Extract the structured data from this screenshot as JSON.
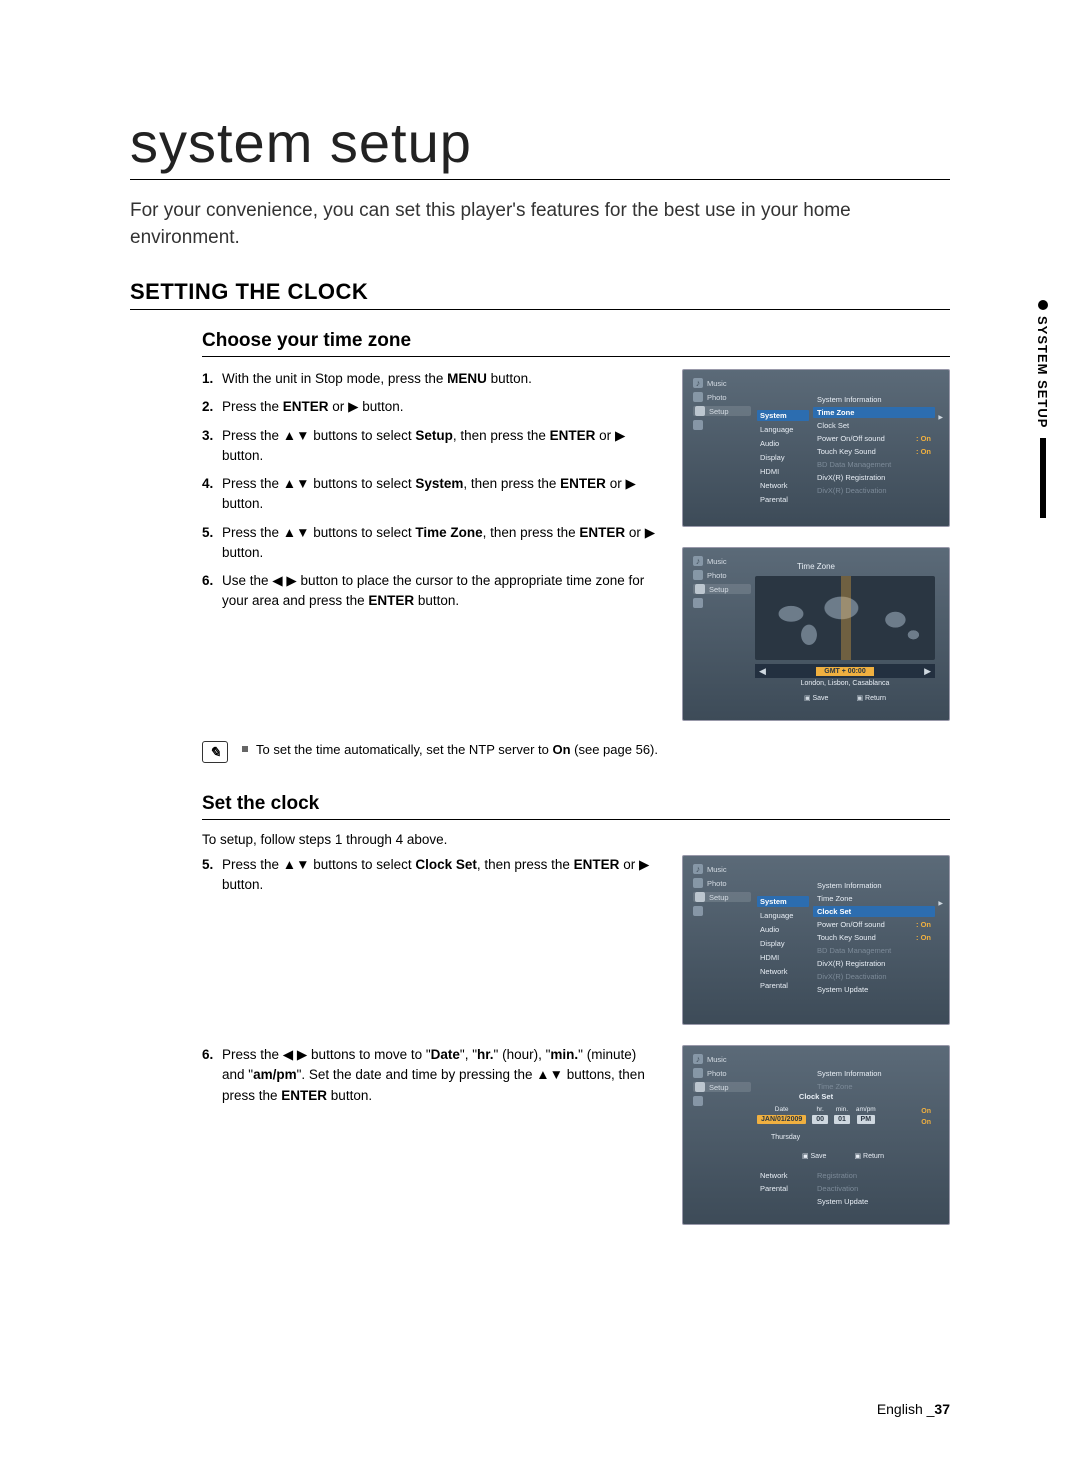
{
  "page": {
    "title": "system setup",
    "intro": "For your convenience, you can set this player's features for the best use in your home environment.",
    "section_heading": "SETTING THE CLOCK",
    "foot_lang": "English",
    "foot_page": "37"
  },
  "side_tab": "SYSTEM SETUP",
  "tz": {
    "heading": "Choose your time zone",
    "steps": [
      {
        "n": "1.",
        "html": "With the unit in Stop mode, press the <b>MENU</b> button."
      },
      {
        "n": "2.",
        "html": "Press the <b>ENTER</b> or <span class='tri'>▶</span> button."
      },
      {
        "n": "3.",
        "html": "Press the <span class='tri'>▲▼</span> buttons to select <b>Setup</b>, then press the <b>ENTER</b> or <span class='tri'>▶</span> button."
      },
      {
        "n": "4.",
        "html": "Press the <span class='tri'>▲▼</span> buttons to select <b>System</b>, then press the <b>ENTER</b> or <span class='tri'>▶</span> button."
      },
      {
        "n": "5.",
        "html": "Press the <span class='tri'>▲▼</span> buttons to select <b>Time Zone</b>, then press the <b>ENTER</b> or <span class='tri'>▶</span> button."
      },
      {
        "n": "6.",
        "html": "Use the <span class='tri'>◀ ▶</span> button to place the cursor to the appropriate time zone for your area and press the <b>ENTER</b> button."
      }
    ],
    "note": "To set the time automatically, set the NTP server to <b>On</b> (see page 56)."
  },
  "sc": {
    "heading": "Set the clock",
    "lead": "To setup, follow steps 1 through 4 above.",
    "steps": [
      {
        "n": "5.",
        "html": "Press the <span class='tri'>▲▼</span> buttons to select <b>Clock Set</b>, then press the <b>ENTER</b> or <span class='tri'>▶</span> button."
      },
      {
        "n": "6.",
        "html": "Press the <span class='tri'>◀ ▶</span> buttons to move to \"<b>Date</b>\", \"<b>hr.</b>\" (hour), \"<b>min.</b>\" (minute) and \"<b>am/pm</b>\". Set the date and time by pressing the <span class='tri'>▲▼</span> buttons, then press the <b>ENTER</b> button."
      }
    ]
  },
  "shots": {
    "nav": [
      "Music",
      "Photo",
      "Setup",
      ""
    ],
    "mid": [
      "System",
      "Language",
      "Audio",
      "Display",
      "HDMI",
      "Network",
      "Parental"
    ],
    "s1_right": [
      {
        "l": "System Information",
        "v": "",
        "sel": false,
        "dim": false
      },
      {
        "l": "Time Zone",
        "v": "",
        "sel": true,
        "dim": false
      },
      {
        "l": "Clock Set",
        "v": "",
        "sel": false,
        "dim": false
      },
      {
        "l": "Power On/Off sound",
        "v": "On",
        "sel": false,
        "dim": false
      },
      {
        "l": "Touch Key Sound",
        "v": "On",
        "sel": false,
        "dim": false
      },
      {
        "l": "BD Data Management",
        "v": "",
        "sel": false,
        "dim": true
      },
      {
        "l": "DivX(R) Registration",
        "v": "",
        "sel": false,
        "dim": false
      },
      {
        "l": "DivX(R) Deactivation",
        "v": "",
        "sel": false,
        "dim": true
      }
    ],
    "s2": {
      "title": "Time Zone",
      "gmt": "GMT + 00:00",
      "city": "London, Lisbon, Casablanca",
      "save": "Save",
      "return": "Return"
    },
    "s3_right": [
      {
        "l": "System Information",
        "v": "",
        "sel": false,
        "dim": false
      },
      {
        "l": "Time Zone",
        "v": "",
        "sel": false,
        "dim": false
      },
      {
        "l": "Clock Set",
        "v": "",
        "sel": true,
        "dim": false
      },
      {
        "l": "Power On/Off sound",
        "v": "On",
        "sel": false,
        "dim": false
      },
      {
        "l": "Touch Key Sound",
        "v": "On",
        "sel": false,
        "dim": false
      },
      {
        "l": "BD Data Management",
        "v": "",
        "sel": false,
        "dim": true
      },
      {
        "l": "DivX(R) Registration",
        "v": "",
        "sel": false,
        "dim": false
      },
      {
        "l": "DivX(R) Deactivation",
        "v": "",
        "sel": false,
        "dim": true
      },
      {
        "l": "System Update",
        "v": "",
        "sel": false,
        "dim": false
      }
    ],
    "s4": {
      "top_right": [
        {
          "l": "System Information",
          "dim": false
        },
        {
          "l": "Time Zone",
          "dim": true
        }
      ],
      "title": "Clock Set",
      "cols": [
        {
          "lbl": "Date",
          "val": "JAN/01/2009",
          "sel": true
        },
        {
          "lbl": "hr.",
          "val": "00",
          "sel": false
        },
        {
          "lbl": "min.",
          "val": "01",
          "sel": false
        },
        {
          "lbl": "am/pm",
          "val": "PM",
          "sel": false
        }
      ],
      "side_vals": [
        "On",
        "On"
      ],
      "day": "Thursday",
      "save": "Save",
      "return": "Return",
      "lower": [
        {
          "l": "Network",
          "v": ""
        },
        {
          "l": "Parental",
          "v": ""
        }
      ],
      "lower_right": [
        {
          "l": "Registration",
          "dim": true
        },
        {
          "l": "Deactivation",
          "dim": true
        },
        {
          "l": "System Update",
          "dim": false
        }
      ]
    }
  }
}
